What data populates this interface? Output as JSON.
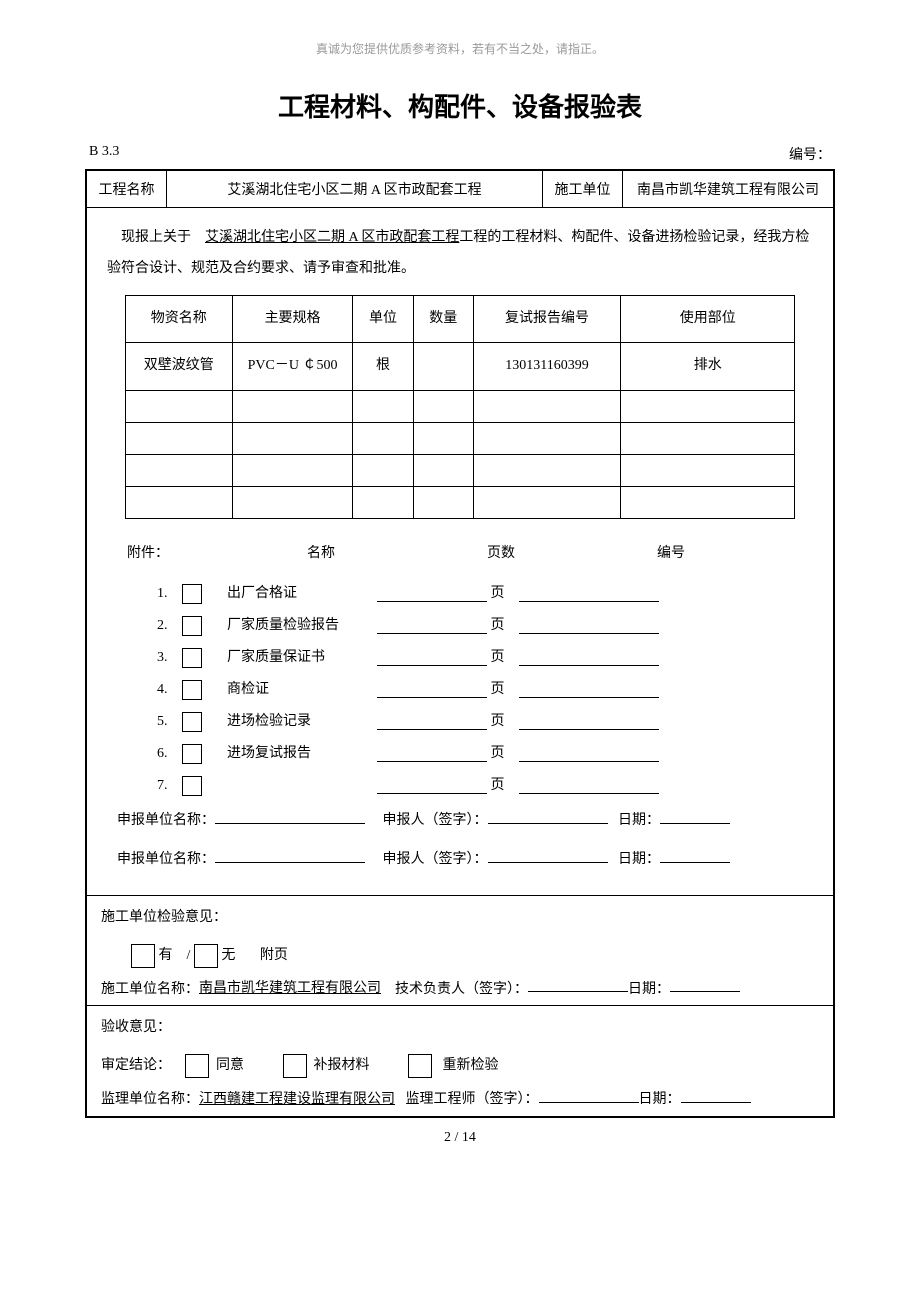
{
  "top_note": "真诚为您提供优质参考资料，若有不当之处，请指正。",
  "title": "工程材料、构配件、设备报验表",
  "form_code": "B 3.3",
  "number_label": "编号：",
  "info": {
    "project_label": "工程名称",
    "project_name": "艾溪湖北住宅小区二期 A 区市政配套工程",
    "unit_label": "施工单位",
    "unit_name": "南昌市凯华建筑工程有限公司"
  },
  "intro": {
    "prefix": "现报上关于",
    "project_u": "   艾溪湖北住宅小区二期 A 区市政配套工程   ",
    "suffix": "工程的工程材料、构配件、设备进扬检验记录，经我方检验符合设计、规范及合约要求、请予审查和批准。"
  },
  "materials": {
    "headers": [
      "物资名称",
      "主要规格",
      "单位",
      "数量",
      "复试报告编号",
      "使用部位"
    ],
    "rows": [
      [
        "双壁波纹管",
        "PVC－U ￠500",
        "根",
        "",
        "130131160399",
        "排水"
      ],
      [
        "",
        "",
        "",
        "",
        "",
        ""
      ],
      [
        "",
        "",
        "",
        "",
        "",
        ""
      ],
      [
        "",
        "",
        "",
        "",
        "",
        ""
      ],
      [
        "",
        "",
        "",
        "",
        "",
        ""
      ]
    ]
  },
  "attach": {
    "titles": [
      "附件：",
      "名称",
      "页数",
      "编号"
    ],
    "items": [
      {
        "n": "1.",
        "name": "出厂合格证"
      },
      {
        "n": "2.",
        "name": "厂家质量检验报告"
      },
      {
        "n": "3.",
        "name": "厂家质量保证书"
      },
      {
        "n": "4.",
        "name": "商检证"
      },
      {
        "n": "5.",
        "name": "进场检验记录"
      },
      {
        "n": "6.",
        "name": "进场复试报告"
      },
      {
        "n": "7.",
        "name": ""
      }
    ],
    "page_unit": "页"
  },
  "sig": {
    "apply_unit": "申报单位名称：",
    "apply_person": "申报人（签字）：",
    "date": "日期："
  },
  "section2": {
    "title": "施工单位检验意见：",
    "has": "有",
    "none": "无",
    "attach_page": "附页",
    "unit_label": "施工单位名称：",
    "unit_name": "  南昌市凯华建筑工程有限公司  ",
    "tech_label": "技术负责人（签字）：",
    "date": "日期："
  },
  "section3": {
    "title": "验收意见：",
    "conclusion": "审定结论：",
    "agree": "同意",
    "supplement": "补报材料",
    "recheck": "重新检验",
    "supervise_label": "监理单位名称：",
    "supervise_name": "  江西赣建工程建设监理有限公司  ",
    "engineer_label": "监理工程师（签字）：",
    "date": "日期："
  },
  "page_num": "2 / 14"
}
